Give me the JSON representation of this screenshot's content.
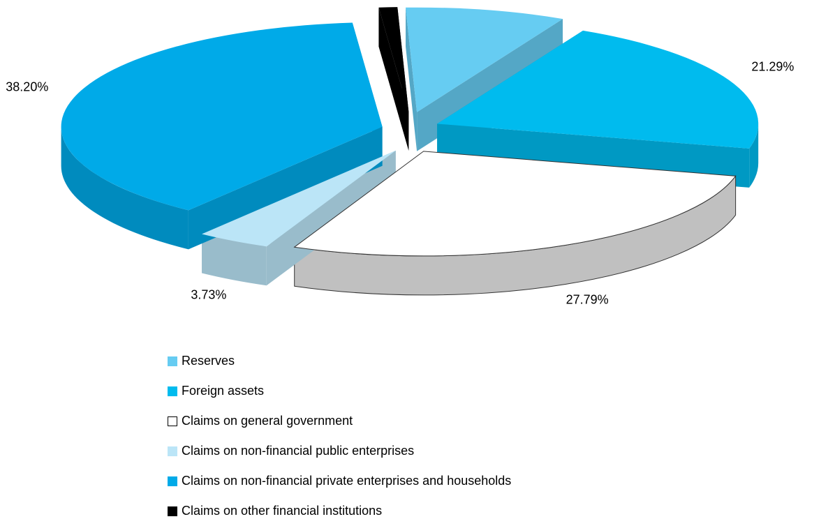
{
  "chart_data": {
    "type": "pie",
    "style": "3d-exploded",
    "slices": [
      {
        "label": "Reserves",
        "value": 8.06,
        "display": "8.06%",
        "color": "#66CCF2"
      },
      {
        "label": "Foreign assets",
        "value": 21.29,
        "display": "21.29%",
        "color": "#00BBEE"
      },
      {
        "label": "Claims on general government",
        "value": 27.79,
        "display": "27.79%",
        "color": "#FFFFFF"
      },
      {
        "label": "Claims on non-financial public enterprises",
        "value": 3.73,
        "display": "3.73%",
        "color": "#BBE5F7"
      },
      {
        "label": "Claims on non-financial private enterprises and households",
        "value": 38.2,
        "display": "38.20%",
        "color": "#00AAE8"
      },
      {
        "label": "Claims on other financial institutions",
        "value": 0.93,
        "display": "0.93%",
        "color": "#000000"
      }
    ],
    "legend_position": "bottom-center"
  }
}
